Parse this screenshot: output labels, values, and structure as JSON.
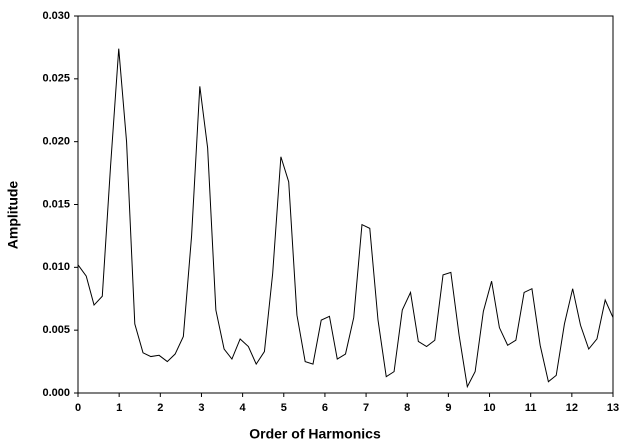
{
  "chart_data": {
    "type": "line",
    "x_label": "Order of Harmonics",
    "y_label": "Amplitude",
    "xlim": [
      0,
      13
    ],
    "xticks": [
      0,
      1,
      2,
      3,
      4,
      5,
      6,
      7,
      8,
      9,
      10,
      11,
      12,
      13
    ],
    "ylim": [
      0,
      0.03
    ],
    "yticks": [
      {
        "value": 0,
        "label": "0.000"
      },
      {
        "value": 0.005,
        "label": "0.005"
      },
      {
        "value": 0.01,
        "label": "0.010"
      },
      {
        "value": 0.015,
        "label": "0.015"
      },
      {
        "value": 0.02,
        "label": "0.020"
      },
      {
        "value": 0.025,
        "label": "0.025"
      },
      {
        "value": 0.03,
        "label": "0.030"
      }
    ],
    "color": "#000000",
    "x": [
      0,
      0.2,
      0.39,
      0.59,
      0.79,
      0.99,
      1.18,
      1.38,
      1.58,
      1.77,
      1.97,
      2.17,
      2.36,
      2.56,
      2.76,
      2.96,
      3.15,
      3.35,
      3.55,
      3.74,
      3.94,
      4.14,
      4.33,
      4.53,
      4.73,
      4.93,
      5.12,
      5.32,
      5.52,
      5.71,
      5.91,
      6.11,
      6.3,
      6.5,
      6.7,
      6.9,
      7.09,
      7.29,
      7.49,
      7.68,
      7.88,
      8.08,
      8.27,
      8.47,
      8.67,
      8.87,
      9.06,
      9.26,
      9.46,
      9.65,
      9.85,
      10.05,
      10.24,
      10.44,
      10.64,
      10.84,
      11.03,
      11.23,
      11.43,
      11.62,
      11.82,
      12.02,
      12.21,
      12.41,
      12.61,
      12.81,
      13
    ],
    "values": [
      0.0102,
      0.0093,
      0.007,
      0.0077,
      0.018,
      0.0274,
      0.02,
      0.0055,
      0.0032,
      0.0029,
      0.003,
      0.0025,
      0.0031,
      0.0045,
      0.0125,
      0.0244,
      0.0195,
      0.0066,
      0.0035,
      0.0027,
      0.0043,
      0.0037,
      0.0023,
      0.0033,
      0.0095,
      0.0188,
      0.0168,
      0.0062,
      0.0025,
      0.0023,
      0.0058,
      0.0061,
      0.0027,
      0.0031,
      0.006,
      0.0134,
      0.0131,
      0.0058,
      0.0013,
      0.0017,
      0.0066,
      0.008,
      0.0041,
      0.0037,
      0.0042,
      0.0094,
      0.0096,
      0.0046,
      0.0005,
      0.0017,
      0.0065,
      0.0089,
      0.0052,
      0.0038,
      0.0042,
      0.008,
      0.0083,
      0.0038,
      0.0009,
      0.0014,
      0.0055,
      0.0083,
      0.0054,
      0.0035,
      0.0043,
      0.0074,
      0.006
    ]
  }
}
